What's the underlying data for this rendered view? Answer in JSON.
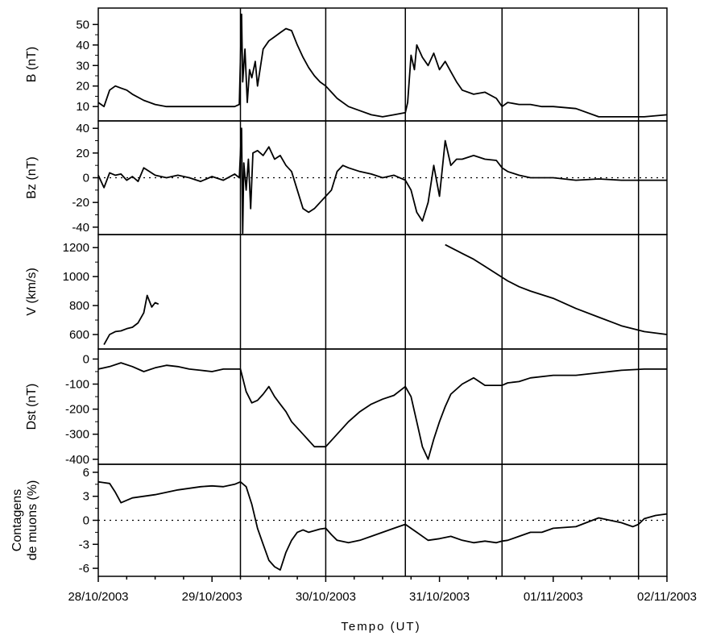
{
  "chart_data": {
    "type": "line",
    "x_axis": {
      "title": "Tempo (UT)",
      "start": "28/10/2003",
      "end": "02/11/2003",
      "tick_labels": [
        "28/10/2003",
        "29/10/2003",
        "30/10/2003",
        "31/10/2003",
        "01/11/2003",
        "02/11/2003"
      ],
      "minor_ticks_per_day": 4
    },
    "event_markers_days_since_start": [
      1.25,
      2.0,
      2.7,
      3.55,
      4.75
    ],
    "panels": [
      {
        "ylabel": "B (nT)",
        "ylim": [
          3,
          58
        ],
        "yticks": [
          10,
          20,
          30,
          40,
          50
        ],
        "baseline": null,
        "series": [
          {
            "x": [
              0.0,
              0.05,
              0.1,
              0.15,
              0.2,
              0.25,
              0.3,
              0.4,
              0.5,
              0.6,
              0.8,
              1.0,
              1.2,
              1.24,
              1.26,
              1.27,
              1.29,
              1.31,
              1.33,
              1.35,
              1.38,
              1.4,
              1.45,
              1.5,
              1.55,
              1.6,
              1.65,
              1.7,
              1.75,
              1.8,
              1.85,
              1.9,
              1.95,
              2.0,
              2.05,
              2.1,
              2.2,
              2.3,
              2.4,
              2.5,
              2.6,
              2.7,
              2.72,
              2.75,
              2.78,
              2.8,
              2.85,
              2.9,
              2.95,
              3.0,
              3.05,
              3.1,
              3.15,
              3.2,
              3.3,
              3.4,
              3.5,
              3.55,
              3.6,
              3.7,
              3.8,
              3.9,
              4.0,
              4.2,
              4.4,
              4.6,
              4.8,
              5.0
            ],
            "y": [
              12,
              10,
              18,
              20,
              19,
              18,
              16,
              13,
              11,
              10,
              10,
              10,
              10,
              11,
              55,
              22,
              38,
              12,
              28,
              24,
              32,
              20,
              38,
              42,
              44,
              46,
              48,
              47,
              40,
              34,
              29,
              25,
              22,
              20,
              17,
              14,
              10,
              8,
              6,
              5,
              6,
              7,
              12,
              35,
              28,
              40,
              34,
              30,
              36,
              28,
              32,
              27,
              22,
              18,
              16,
              17,
              14,
              10,
              12,
              11,
              11,
              10,
              10,
              9,
              5,
              5,
              5,
              6
            ]
          }
        ]
      },
      {
        "ylabel": "Bz (nT)",
        "ylim": [
          -46,
          46
        ],
        "yticks": [
          -40,
          -20,
          0,
          20,
          40
        ],
        "baseline": 0,
        "series": [
          {
            "x": [
              0.0,
              0.05,
              0.1,
              0.15,
              0.2,
              0.25,
              0.3,
              0.35,
              0.4,
              0.45,
              0.5,
              0.6,
              0.7,
              0.8,
              0.9,
              1.0,
              1.1,
              1.2,
              1.24,
              1.26,
              1.27,
              1.28,
              1.3,
              1.32,
              1.34,
              1.36,
              1.4,
              1.45,
              1.5,
              1.55,
              1.6,
              1.65,
              1.7,
              1.75,
              1.8,
              1.85,
              1.9,
              1.95,
              2.0,
              2.05,
              2.1,
              2.15,
              2.2,
              2.3,
              2.4,
              2.5,
              2.6,
              2.7,
              2.75,
              2.8,
              2.85,
              2.9,
              2.95,
              3.0,
              3.05,
              3.1,
              3.15,
              3.2,
              3.3,
              3.4,
              3.5,
              3.55,
              3.6,
              3.7,
              3.8,
              4.0,
              4.2,
              4.4,
              4.6,
              4.8,
              5.0
            ],
            "y": [
              2,
              -8,
              4,
              2,
              3,
              -2,
              1,
              -3,
              8,
              5,
              2,
              0,
              2,
              0,
              -3,
              1,
              -2,
              3,
              0,
              40,
              -45,
              12,
              -10,
              15,
              -25,
              20,
              22,
              18,
              25,
              15,
              18,
              10,
              5,
              -10,
              -25,
              -28,
              -25,
              -20,
              -15,
              -10,
              5,
              10,
              8,
              5,
              3,
              0,
              2,
              -2,
              -10,
              -28,
              -35,
              -20,
              10,
              -15,
              30,
              10,
              15,
              15,
              18,
              15,
              14,
              8,
              5,
              2,
              0,
              0,
              -2,
              -1,
              -2,
              -2,
              -2
            ]
          }
        ]
      },
      {
        "ylabel": "V (km/s)",
        "ylim": [
          500,
          1290
        ],
        "yticks": [
          600,
          800,
          1000,
          1200
        ],
        "baseline": null,
        "series": [
          {
            "x": [
              0.05,
              0.1,
              0.15,
              0.2,
              0.25,
              0.3,
              0.35,
              0.4,
              0.43,
              0.47,
              0.5,
              0.53
            ],
            "y": [
              530,
              600,
              620,
              625,
              640,
              650,
              680,
              750,
              870,
              790,
              820,
              810
            ]
          },
          {
            "x": [
              3.05,
              3.1,
              3.15,
              3.2,
              3.3,
              3.4,
              3.5,
              3.6,
              3.7,
              3.8,
              4.0,
              4.2,
              4.4,
              4.6,
              4.8,
              5.0
            ],
            "y": [
              1220,
              1200,
              1180,
              1160,
              1120,
              1070,
              1020,
              970,
              930,
              900,
              850,
              780,
              720,
              660,
              620,
              600
            ]
          }
        ]
      },
      {
        "ylabel": "Dst (nT)",
        "ylim": [
          -420,
          40
        ],
        "yticks": [
          -400,
          -300,
          -200,
          -100,
          0
        ],
        "baseline": null,
        "series": [
          {
            "x": [
              0.0,
              0.1,
              0.2,
              0.3,
              0.4,
              0.5,
              0.6,
              0.7,
              0.8,
              0.9,
              1.0,
              1.1,
              1.2,
              1.25,
              1.3,
              1.35,
              1.4,
              1.45,
              1.5,
              1.55,
              1.6,
              1.65,
              1.7,
              1.8,
              1.9,
              2.0,
              2.1,
              2.2,
              2.3,
              2.4,
              2.5,
              2.6,
              2.7,
              2.75,
              2.8,
              2.85,
              2.9,
              2.95,
              3.0,
              3.05,
              3.1,
              3.2,
              3.3,
              3.4,
              3.5,
              3.55,
              3.6,
              3.7,
              3.8,
              4.0,
              4.2,
              4.4,
              4.6,
              4.8,
              5.0
            ],
            "y": [
              -40,
              -30,
              -15,
              -30,
              -50,
              -35,
              -25,
              -30,
              -40,
              -45,
              -50,
              -40,
              -40,
              -40,
              -130,
              -175,
              -165,
              -140,
              -110,
              -150,
              -180,
              -210,
              -250,
              -300,
              -350,
              -350,
              -300,
              -250,
              -210,
              -180,
              -160,
              -145,
              -110,
              -150,
              -250,
              -350,
              -400,
              -320,
              -250,
              -190,
              -140,
              -100,
              -75,
              -105,
              -105,
              -105,
              -95,
              -90,
              -75,
              -65,
              -65,
              -55,
              -45,
              -40,
              -40
            ]
          }
        ]
      },
      {
        "ylabel": "Contagens de muons (%)",
        "ylim": [
          -7,
          7
        ],
        "yticks": [
          -6,
          -3,
          0,
          3,
          6
        ],
        "baseline": 0,
        "series": [
          {
            "x": [
              0.0,
              0.1,
              0.15,
              0.2,
              0.25,
              0.3,
              0.4,
              0.5,
              0.6,
              0.7,
              0.8,
              0.9,
              1.0,
              1.1,
              1.2,
              1.25,
              1.3,
              1.35,
              1.4,
              1.45,
              1.5,
              1.55,
              1.6,
              1.65,
              1.7,
              1.75,
              1.8,
              1.85,
              1.9,
              1.95,
              2.0,
              2.05,
              2.1,
              2.2,
              2.3,
              2.4,
              2.5,
              2.6,
              2.7,
              2.8,
              2.9,
              3.0,
              3.1,
              3.2,
              3.3,
              3.4,
              3.5,
              3.55,
              3.6,
              3.7,
              3.8,
              3.9,
              4.0,
              4.2,
              4.4,
              4.5,
              4.6,
              4.7,
              4.75,
              4.8,
              4.9,
              5.0
            ],
            "y": [
              4.8,
              4.6,
              3.5,
              2.2,
              2.5,
              2.8,
              3.0,
              3.2,
              3.5,
              3.8,
              4.0,
              4.2,
              4.3,
              4.2,
              4.5,
              4.8,
              4.2,
              2.0,
              -1.0,
              -3.0,
              -5.0,
              -5.8,
              -6.2,
              -4.0,
              -2.5,
              -1.5,
              -1.2,
              -1.5,
              -1.3,
              -1.1,
              -1.0,
              -1.8,
              -2.5,
              -2.8,
              -2.5,
              -2.0,
              -1.5,
              -1.0,
              -0.5,
              -1.5,
              -2.5,
              -2.3,
              -2.0,
              -2.5,
              -2.8,
              -2.6,
              -2.8,
              -2.6,
              -2.5,
              -2.0,
              -1.5,
              -1.5,
              -1.0,
              -0.8,
              0.3,
              0.0,
              -0.3,
              -0.8,
              -0.5,
              0.2,
              0.6,
              0.8
            ]
          }
        ]
      }
    ]
  }
}
